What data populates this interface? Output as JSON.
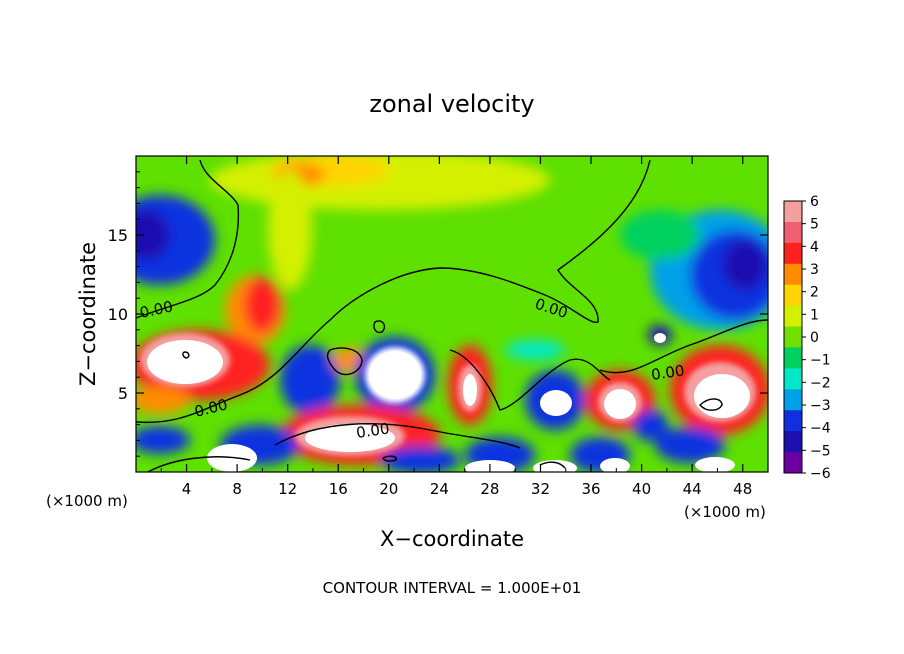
{
  "chart_data": {
    "type": "heatmap",
    "title": "zonal velocity",
    "xlabel": "X−coordinate",
    "ylabel": "Z−coordinate",
    "x_unit_label_left": "(×1000 m)",
    "x_unit_label_right": "(×1000 m)",
    "xlim": [
      0,
      50
    ],
    "ylim": [
      0,
      20
    ],
    "x_ticks": [
      4,
      8,
      12,
      16,
      20,
      24,
      28,
      32,
      36,
      40,
      44,
      48
    ],
    "y_ticks": [
      5,
      10,
      15
    ],
    "colorbar": {
      "levels": [
        6,
        5,
        4,
        3,
        2,
        1,
        0,
        -1,
        -2,
        -3,
        -4,
        -5,
        -6
      ],
      "labels": [
        "6",
        "5",
        "4",
        "3",
        "2",
        "1",
        "0",
        "−1",
        "−2",
        "−3",
        "−4",
        "−5",
        "−6"
      ],
      "colors": [
        "#f4a0a0",
        "#f06070",
        "#ff2020",
        "#ff8c00",
        "#ffd400",
        "#d4f000",
        "#70e000",
        "#00d060",
        "#00e8c8",
        "#00a0e8",
        "#1030e0",
        "#1c10b0",
        "#6a00a0"
      ]
    },
    "contour_labels": [
      "0.00",
      "0.00",
      "0.00",
      "0.00",
      "0.00"
    ],
    "footer": "CONTOUR INTERVAL = 1.000E+01"
  }
}
